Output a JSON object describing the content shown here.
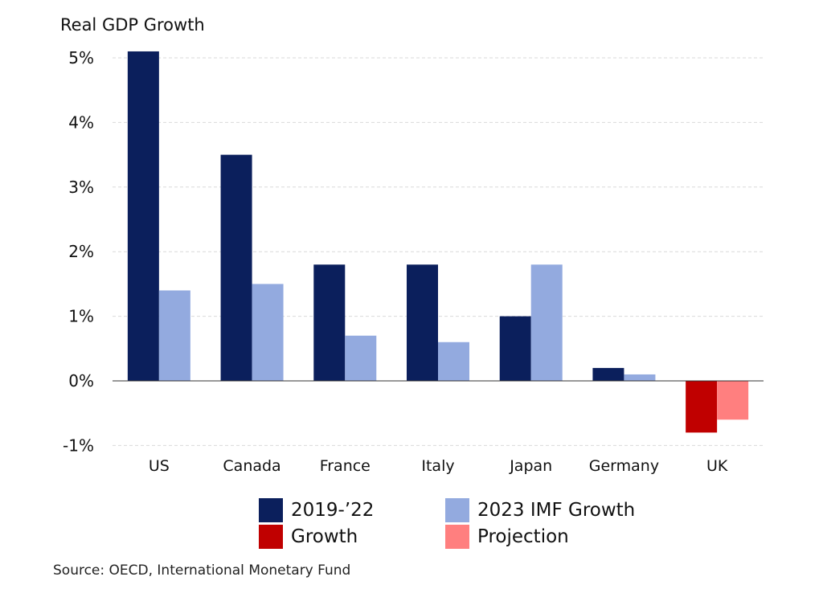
{
  "chart_data": {
    "type": "bar",
    "ylabel": "Real GDP Growth",
    "categories": [
      "US",
      "Canada",
      "France",
      "Italy",
      "Japan",
      "Germany",
      "UK"
    ],
    "ylim": [
      -1,
      5
    ],
    "yticks": [
      5,
      4,
      3,
      2,
      1,
      0,
      -1
    ],
    "ytick_labels": [
      "5%",
      "4%",
      "3%",
      "2%",
      "1%",
      "0%",
      "-1%"
    ],
    "grid": true,
    "series": [
      {
        "values": [
          5.1,
          3.5,
          1.8,
          1.8,
          1.0,
          0.2,
          -0.8
        ],
        "color": "#0B1F5C",
        "negative_color": "#C00000"
      },
      {
        "values": [
          1.4,
          1.5,
          0.7,
          0.6,
          1.8,
          0.1,
          -0.6
        ],
        "color": "#93AADF",
        "negative_color": "#FF7F7F"
      }
    ]
  },
  "legend": {
    "items": [
      {
        "label": "2019-’22",
        "color": "#0B1F5C"
      },
      {
        "label": "2023 IMF Growth",
        "color": "#93AADF"
      },
      {
        "label": "Growth",
        "color": "#C00000"
      },
      {
        "label": "Projection",
        "color": "#FF7F7F"
      }
    ]
  },
  "source": "Source: OECD, International Monetary Fund"
}
